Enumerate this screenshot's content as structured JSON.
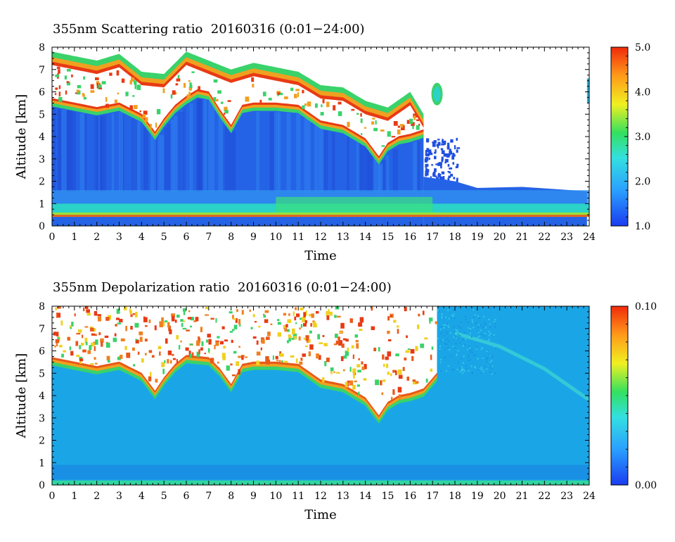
{
  "chart_data": [
    {
      "type": "heatmap",
      "title": "355nm Scattering ratio  20160316 (0:01−24:00)",
      "xlabel": "Time",
      "ylabel": "Altitude [km]",
      "xlim": [
        0,
        24
      ],
      "ylim": [
        0,
        8
      ],
      "xticks": [
        "0",
        "1",
        "2",
        "3",
        "4",
        "5",
        "6",
        "7",
        "8",
        "9",
        "10",
        "11",
        "12",
        "13",
        "14",
        "15",
        "16",
        "17",
        "18",
        "19",
        "20",
        "21",
        "22",
        "23",
        "24"
      ],
      "yticks": [
        "0",
        "1",
        "2",
        "3",
        "4",
        "5",
        "6",
        "7",
        "8"
      ],
      "colorbar": {
        "min": 1.0,
        "max": 5.0,
        "ticks": [
          "1.0",
          "2.0",
          "3.0",
          "4.0",
          "5.0"
        ]
      },
      "features": {
        "surface_layer_altitude_km": 0.45,
        "boundary_layer_top_km": 1.0,
        "cloud_base_km": [
          [
            0,
            5.5
          ],
          [
            1,
            5.3
          ],
          [
            2,
            5.1
          ],
          [
            3,
            5.3
          ],
          [
            4,
            4.8
          ],
          [
            4.6,
            4.0
          ],
          [
            5,
            4.6
          ],
          [
            5.5,
            5.2
          ],
          [
            6,
            5.6
          ],
          [
            6.5,
            5.9
          ],
          [
            7,
            5.8
          ],
          [
            7.5,
            5.0
          ],
          [
            8,
            4.3
          ],
          [
            8.5,
            5.2
          ],
          [
            9,
            5.3
          ],
          [
            10,
            5.3
          ],
          [
            11,
            5.2
          ],
          [
            12,
            4.5
          ],
          [
            13,
            4.3
          ],
          [
            14,
            3.7
          ],
          [
            14.6,
            2.9
          ],
          [
            15,
            3.5
          ],
          [
            15.5,
            3.8
          ],
          [
            16,
            3.9
          ],
          [
            16.6,
            4.1
          ]
        ],
        "cloud_top_km": [
          [
            0,
            7.8
          ],
          [
            1,
            7.6
          ],
          [
            2,
            7.4
          ],
          [
            3,
            7.7
          ],
          [
            4,
            6.9
          ],
          [
            5,
            6.8
          ],
          [
            6,
            7.8
          ],
          [
            7,
            7.4
          ],
          [
            8,
            7.0
          ],
          [
            9,
            7.3
          ],
          [
            10,
            7.1
          ],
          [
            11,
            6.9
          ],
          [
            12,
            6.3
          ],
          [
            13,
            6.2
          ],
          [
            14,
            5.6
          ],
          [
            15,
            5.3
          ],
          [
            16,
            6.0
          ],
          [
            16.6,
            5.0
          ]
        ],
        "aerosol_top_km_after_18h": 1.7
      }
    },
    {
      "type": "heatmap",
      "title": "355nm Depolarization ratio  20160316 (0:01−24:00)",
      "xlabel": "Time",
      "ylabel": "Altitude [km]",
      "xlim": [
        0,
        24
      ],
      "ylim": [
        0,
        8
      ],
      "xticks": [
        "0",
        "1",
        "2",
        "3",
        "4",
        "5",
        "6",
        "7",
        "8",
        "9",
        "10",
        "11",
        "12",
        "13",
        "14",
        "15",
        "16",
        "17",
        "18",
        "19",
        "20",
        "21",
        "22",
        "23",
        "24"
      ],
      "yticks": [
        "0",
        "1",
        "2",
        "3",
        "4",
        "5",
        "6",
        "7",
        "8"
      ],
      "colorbar": {
        "min": 0.0,
        "max": 0.1,
        "ticks": [
          "0.00",
          "0.10"
        ]
      },
      "features": {
        "surface_layer_altitude_km": 0.1,
        "cloud_base_km": [
          [
            0,
            5.5
          ],
          [
            1,
            5.3
          ],
          [
            2,
            5.1
          ],
          [
            3,
            5.3
          ],
          [
            4,
            4.8
          ],
          [
            4.6,
            4.0
          ],
          [
            5,
            4.6
          ],
          [
            5.5,
            5.2
          ],
          [
            6,
            5.6
          ],
          [
            7,
            5.5
          ],
          [
            7.5,
            5.0
          ],
          [
            8,
            4.3
          ],
          [
            8.5,
            5.2
          ],
          [
            9,
            5.3
          ],
          [
            10,
            5.3
          ],
          [
            11,
            5.2
          ],
          [
            12,
            4.5
          ],
          [
            13,
            4.3
          ],
          [
            14,
            3.7
          ],
          [
            14.6,
            2.9
          ],
          [
            15,
            3.5
          ],
          [
            15.5,
            3.8
          ],
          [
            16,
            3.9
          ],
          [
            16.6,
            4.1
          ],
          [
            17.2,
            4.8
          ]
        ],
        "thin_layer_descending": [
          [
            18,
            6.8
          ],
          [
            20,
            6.2
          ],
          [
            22,
            5.2
          ],
          [
            24,
            3.8
          ]
        ]
      }
    }
  ]
}
